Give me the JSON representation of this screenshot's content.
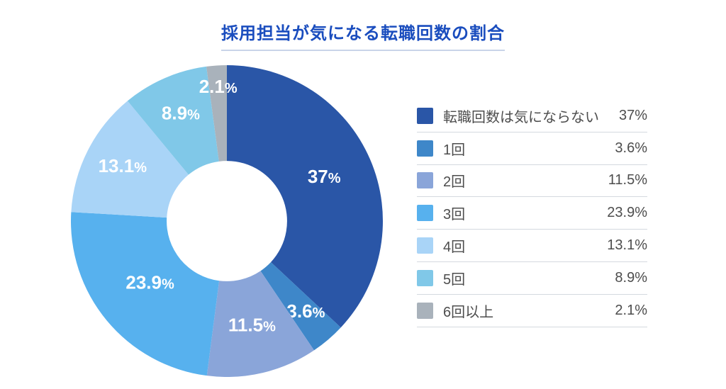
{
  "title": "採用担当が気になる転職回数の割合",
  "chart_data": {
    "type": "pie",
    "subtype": "donut",
    "title": "採用担当が気になる転職回数の割合",
    "start_angle_deg": 0,
    "direction": "clockwise",
    "inner_radius_ratio": 0.386,
    "legend_position": "right",
    "slice_label_color": "#ffffff",
    "label_radius_fractions": [
      0.68,
      0.78,
      0.7,
      0.64,
      0.75,
      0.74,
      0.85
    ],
    "series": [
      {
        "label": "転職回数は気にならない",
        "value": 37,
        "value_label": "37%",
        "color": "#2a56a7"
      },
      {
        "label": "1回",
        "value": 3.6,
        "value_label": "3.6%",
        "color": "#3e87c9"
      },
      {
        "label": "2回",
        "value": 11.5,
        "value_label": "11.5%",
        "color": "#8aa5d9"
      },
      {
        "label": "3回",
        "value": 23.9,
        "value_label": "23.9%",
        "color": "#57b1ee"
      },
      {
        "label": "4回",
        "value": 13.1,
        "value_label": "13.1%",
        "color": "#a9d4f7"
      },
      {
        "label": "5回",
        "value": 8.9,
        "value_label": "8.9%",
        "color": "#80c8e8"
      },
      {
        "label": "6回以上",
        "value": 2.1,
        "value_label": "2.1%",
        "color": "#a9b2bb"
      }
    ]
  }
}
